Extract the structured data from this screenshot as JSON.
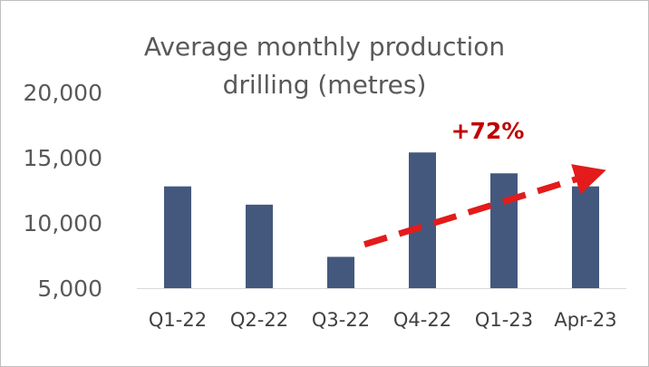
{
  "chart_data": {
    "type": "bar",
    "title_lines": [
      "Average monthly production",
      "drilling (metres)"
    ],
    "categories": [
      "Q1-22",
      "Q2-22",
      "Q3-22",
      "Q4-22",
      "Q1-23",
      "Apr-23"
    ],
    "values": [
      12800,
      11400,
      7400,
      15400,
      13800,
      12800
    ],
    "y_ticks": [
      "20,000",
      "15,000",
      "10,000",
      "5,000"
    ],
    "y_tick_values": [
      20000,
      15000,
      10000,
      5000
    ],
    "ylim": [
      5000,
      20000
    ],
    "grid": false,
    "bar_color": "#44587e",
    "annotation": {
      "text": "+72%",
      "style": "dashed arrow",
      "color": "#e31b1b",
      "text_color": "#c00000"
    }
  }
}
